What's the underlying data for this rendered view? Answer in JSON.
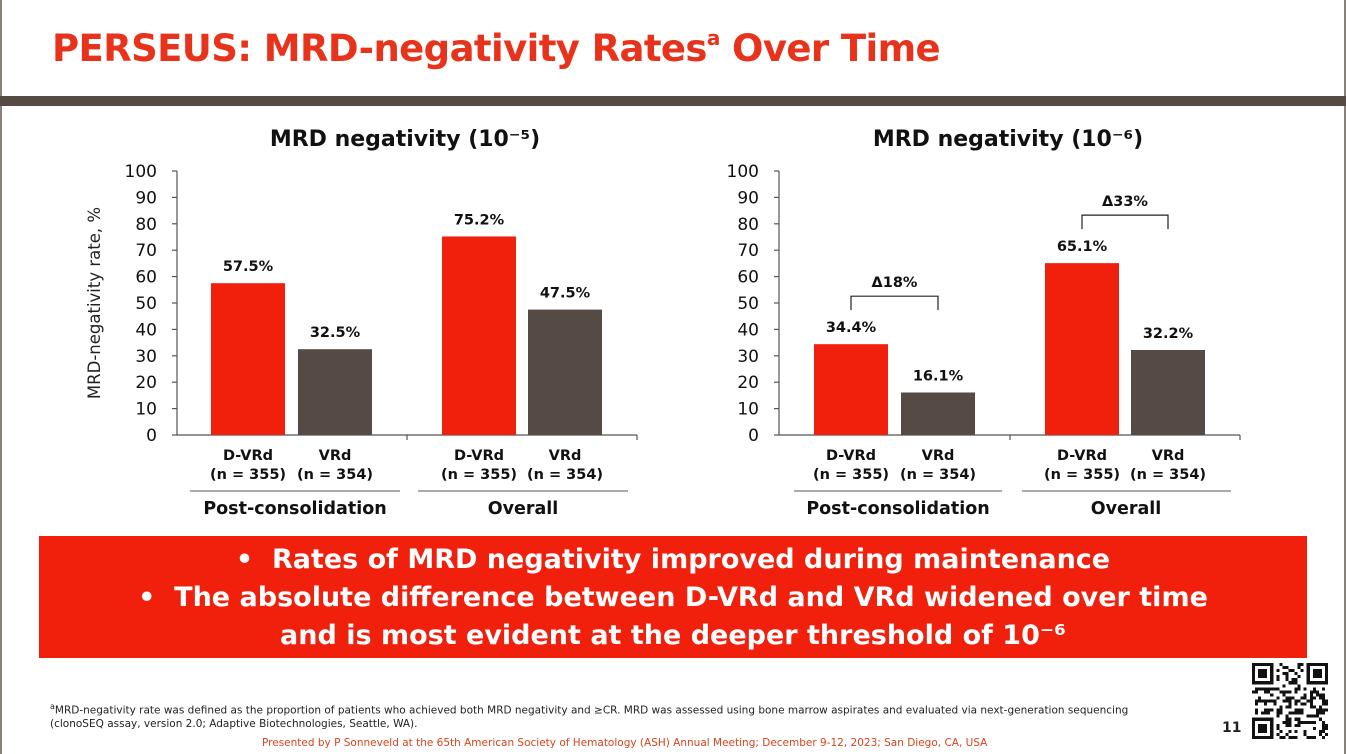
{
  "slide": {
    "title_main": "PERSEUS: MRD-negativity Rates",
    "title_sup": "a",
    "title_tail": " Over Time",
    "page_number": "11",
    "footnote_marker": "a",
    "footnote": "MRD-negativity rate was defined as the proportion of patients who achieved both MRD negativity and ≥CR. MRD was assessed using bone marrow aspirates and evaluated via next-generation sequencing (clonoSEQ assay, version 2.0; Adaptive Biotechnologies, Seattle, WA).",
    "presented_by": "Presented by P Sonneveld at the 65th American Society of Hematology (ASH) Annual Meeting; December 9-12, 2023; San Diego, CA, USA",
    "qr_icon": "qr-code-icon",
    "bullets": [
      {
        "text": "Rates of MRD negativity improved during maintenance"
      },
      {
        "line1": "The absolute difference between D-VRd and VRd widened over time",
        "line2": "and is most evident at the deeper threshold of 10⁻⁶"
      }
    ],
    "colors": {
      "accent": "#e8331c",
      "dvrd": "#f0200c",
      "vrd": "#554a44",
      "bar": "#554a44"
    }
  },
  "chart_data": [
    {
      "type": "bar",
      "title": "MRD negativity (10⁻⁵)",
      "ylabel": "MRD-negativity rate, %",
      "ylim": [
        0,
        100
      ],
      "yticks": [
        "0",
        "10",
        "20",
        "30",
        "40",
        "50",
        "60",
        "70",
        "80",
        "90",
        "100"
      ],
      "groups": [
        "Post-consolidation",
        "Overall"
      ],
      "categories": [
        {
          "arm": "D-VRd",
          "n": "(n = 355)"
        },
        {
          "arm": "VRd",
          "n": "(n = 354)"
        },
        {
          "arm": "D-VRd",
          "n": "(n = 355)"
        },
        {
          "arm": "VRd",
          "n": "(n = 354)"
        }
      ],
      "values": [
        57.5,
        32.5,
        75.2,
        47.5
      ],
      "data_labels": [
        "57.5%",
        "32.5%",
        "75.2%",
        "47.5%"
      ],
      "differences": []
    },
    {
      "type": "bar",
      "title": "MRD negativity (10⁻⁶)",
      "ylabel": "",
      "ylim": [
        0,
        100
      ],
      "yticks": [
        "0",
        "10",
        "20",
        "30",
        "40",
        "50",
        "60",
        "70",
        "80",
        "90",
        "100"
      ],
      "groups": [
        "Post-consolidation",
        "Overall"
      ],
      "categories": [
        {
          "arm": "D-VRd",
          "n": "(n = 355)"
        },
        {
          "arm": "VRd",
          "n": "(n = 354)"
        },
        {
          "arm": "D-VRd",
          "n": "(n = 355)"
        },
        {
          "arm": "VRd",
          "n": "(n = 354)"
        }
      ],
      "values": [
        34.4,
        16.1,
        65.1,
        32.2
      ],
      "data_labels": [
        "34.4%",
        "16.1%",
        "65.1%",
        "32.2%"
      ],
      "differences": [
        {
          "group": 0,
          "label": "Δ18%"
        },
        {
          "group": 1,
          "label": "Δ33%"
        }
      ]
    }
  ]
}
